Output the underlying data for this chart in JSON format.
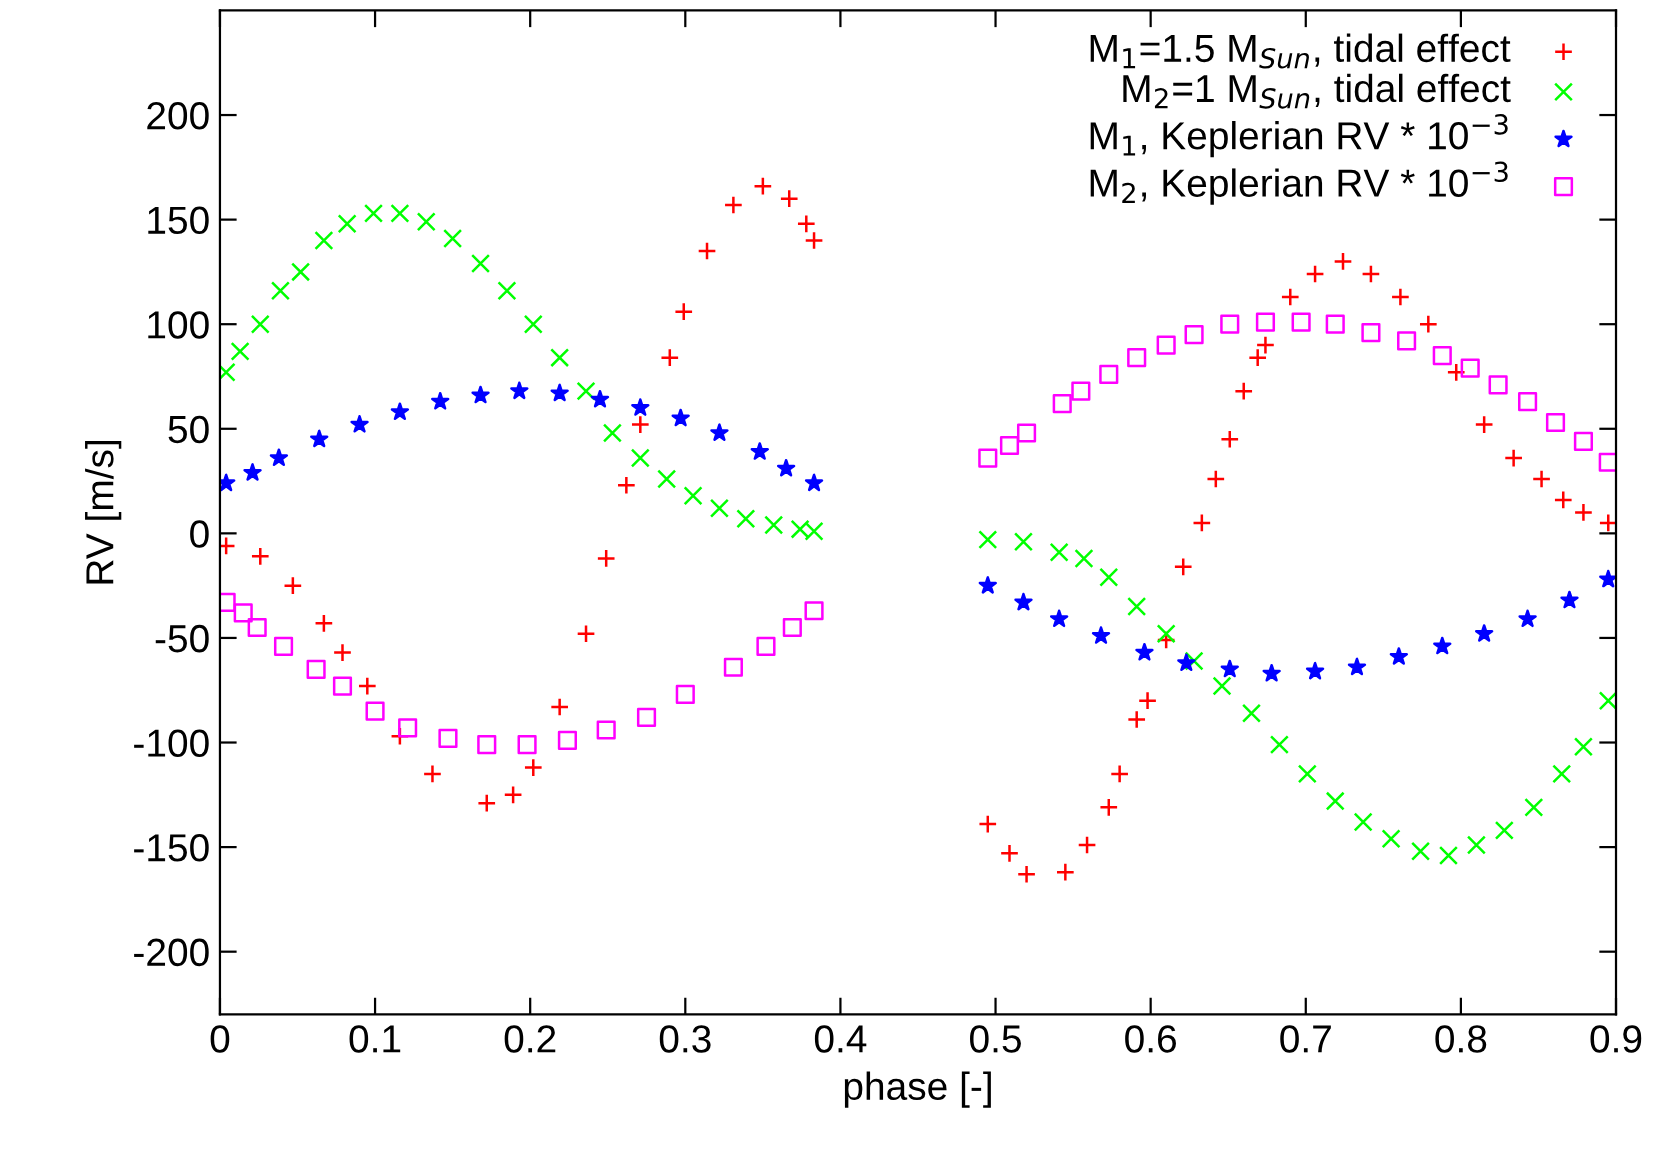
{
  "chart_data": {
    "type": "scatter",
    "xlabel": "phase [-]",
    "ylabel": "RV [m/s]",
    "xlim": [
      0,
      0.9
    ],
    "ylim": [
      -230,
      250
    ],
    "xticks": [
      0,
      0.1,
      0.2,
      0.3,
      0.4,
      0.5,
      0.6,
      0.7,
      0.8,
      0.9
    ],
    "yticks": [
      -200,
      -150,
      -100,
      -50,
      0,
      50,
      100,
      150,
      200
    ],
    "grid": false,
    "legend": "top right",
    "series": [
      {
        "name": "M$_{1}$=1.5 M$_{Sun}$, tidal effect",
        "color": "#ff0000",
        "marker": "plus",
        "x": [
          0.004,
          0.026,
          0.047,
          0.067,
          0.079,
          0.095,
          0.116,
          0.137,
          0.172,
          0.189,
          0.202,
          0.219,
          0.236,
          0.249,
          0.262,
          0.271,
          0.29,
          0.299,
          0.314,
          0.331,
          0.35,
          0.367,
          0.378,
          0.383,
          0.495,
          0.509,
          0.52,
          0.545,
          0.559,
          0.573,
          0.58,
          0.591,
          0.598,
          0.61,
          0.621,
          0.633,
          0.642,
          0.651,
          0.66,
          0.669,
          0.674,
          0.69,
          0.706,
          0.724,
          0.742,
          0.761,
          0.779,
          0.797,
          0.815,
          0.834,
          0.852,
          0.866,
          0.879,
          0.895
        ],
        "values": [
          -6,
          -11,
          -25,
          -43,
          -57,
          -73,
          -97,
          -115,
          -129,
          -125,
          -112,
          -83,
          -48,
          -12,
          23,
          52,
          84,
          106,
          135,
          157,
          166,
          160,
          148,
          140,
          -139,
          -153,
          -163,
          -162,
          -149,
          -131,
          -115,
          -89,
          -80,
          -51,
          -16,
          5,
          26,
          45,
          68,
          84,
          90,
          113,
          124,
          130,
          124,
          113,
          100,
          77,
          52,
          36,
          26,
          16,
          10,
          5
        ]
      },
      {
        "name": "M$_{2}$=1 M$_{Sun}$, tidal effect",
        "color": "#00ff00",
        "marker": "cross",
        "x": [
          0.004,
          0.013,
          0.026,
          0.039,
          0.052,
          0.067,
          0.082,
          0.099,
          0.116,
          0.133,
          0.15,
          0.168,
          0.185,
          0.202,
          0.219,
          0.236,
          0.253,
          0.271,
          0.288,
          0.305,
          0.322,
          0.339,
          0.357,
          0.374,
          0.383,
          0.495,
          0.518,
          0.541,
          0.557,
          0.573,
          0.591,
          0.61,
          0.628,
          0.646,
          0.665,
          0.683,
          0.701,
          0.719,
          0.737,
          0.755,
          0.774,
          0.792,
          0.81,
          0.828,
          0.847,
          0.865,
          0.879,
          0.895
        ],
        "values": [
          77,
          87,
          100,
          116,
          125,
          140,
          148,
          153,
          153,
          149,
          141,
          129,
          116,
          100,
          84,
          68,
          48,
          36,
          26,
          18,
          12,
          7,
          4,
          2,
          1,
          -3,
          -4,
          -9,
          -12,
          -21,
          -35,
          -48,
          -61,
          -73,
          -86,
          -101,
          -115,
          -128,
          -138,
          -146,
          -152,
          -154,
          -149,
          -142,
          -131,
          -115,
          -102,
          -80
        ]
      },
      {
        "name": "M$_{1}$, Keplerian RV * 10$^{−3}$",
        "color": "#0000ff",
        "marker": "star",
        "x": [
          0.004,
          0.021,
          0.038,
          0.064,
          0.09,
          0.116,
          0.142,
          0.168,
          0.193,
          0.219,
          0.245,
          0.271,
          0.297,
          0.322,
          0.348,
          0.365,
          0.383,
          0.495,
          0.518,
          0.541,
          0.568,
          0.596,
          0.623,
          0.651,
          0.678,
          0.706,
          0.733,
          0.76,
          0.788,
          0.815,
          0.843,
          0.87,
          0.895
        ],
        "values": [
          24,
          29,
          36,
          45,
          52,
          58,
          63,
          66,
          68,
          67,
          64,
          60,
          55,
          48,
          39,
          31,
          24,
          -25,
          -33,
          -41,
          -49,
          -57,
          -62,
          -65,
          -67,
          -66,
          -64,
          -59,
          -54,
          -48,
          -41,
          -32,
          -22
        ]
      },
      {
        "name": "M$_{2}$, Keplerian RV * 10$^{−3}$",
        "color": "#ff00ff",
        "marker": "square",
        "x": [
          0.004,
          0.015,
          0.024,
          0.041,
          0.062,
          0.079,
          0.1,
          0.121,
          0.147,
          0.172,
          0.198,
          0.224,
          0.249,
          0.275,
          0.3,
          0.331,
          0.352,
          0.369,
          0.383,
          0.495,
          0.509,
          0.52,
          0.543,
          0.555,
          0.573,
          0.591,
          0.61,
          0.628,
          0.651,
          0.674,
          0.697,
          0.719,
          0.742,
          0.765,
          0.788,
          0.806,
          0.824,
          0.843,
          0.861,
          0.879,
          0.895
        ],
        "values": [
          -33,
          -38,
          -45,
          -54,
          -65,
          -73,
          -85,
          -93,
          -98,
          -101,
          -101,
          -99,
          -94,
          -88,
          -77,
          -64,
          -54,
          -45,
          -37,
          36,
          42,
          48,
          62,
          68,
          76,
          84,
          90,
          95,
          100,
          101,
          101,
          100,
          96,
          92,
          85,
          79,
          71,
          63,
          53,
          44,
          34
        ]
      }
    ]
  }
}
